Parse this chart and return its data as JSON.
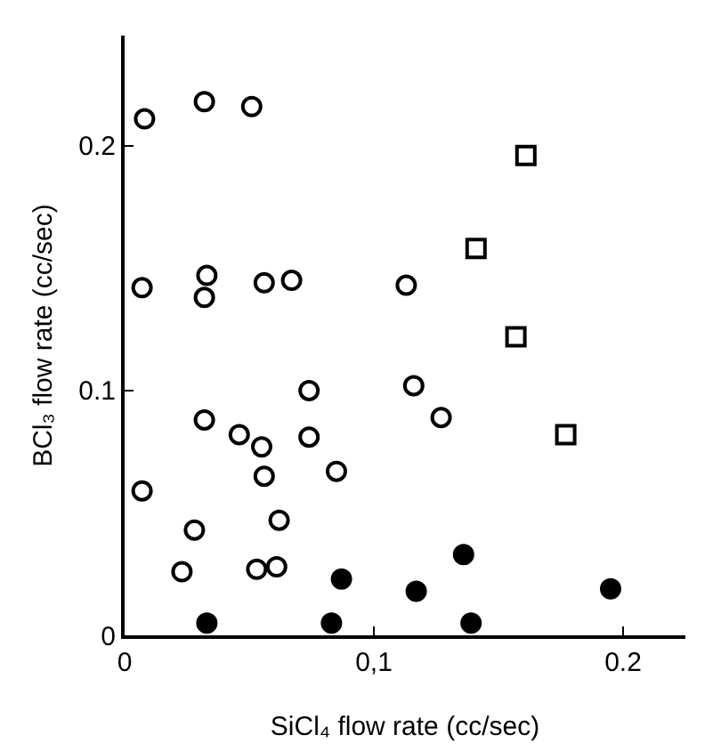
{
  "chart_data": {
    "type": "scatter",
    "xlabel": "SiCl₄ flow rate (cc/sec)",
    "ylabel": "BCl₃ flow rate (cc/sec)",
    "xlim": [
      0,
      0.225
    ],
    "ylim": [
      0,
      0.245
    ],
    "xticks": [
      0,
      {
        "value": 0.1,
        "label": "0,1"
      },
      0.2
    ],
    "yticks": [
      0,
      0.1,
      0.2
    ],
    "grid": false,
    "series": [
      {
        "color": "#ffffff",
        "marker": "circle",
        "x": [
          0.008,
          0.032,
          0.051,
          0.007,
          0.033,
          0.032,
          0.056,
          0.032,
          0.007,
          0.046
        ],
        "values": [
          0.211,
          0.218,
          0.216,
          0.142,
          0.147,
          0.138,
          0.144,
          0.088,
          0.059,
          0.082
        ]
      },
      {
        "color": "#ffffff",
        "marker": "circle",
        "x": [
          0.067,
          0.113,
          0.116,
          0.127,
          0.074,
          0.074,
          0.085,
          0.055,
          0.056,
          0.062,
          0.028,
          0.023,
          0.053,
          0.061
        ],
        "values": [
          0.145,
          0.143,
          0.102,
          0.089,
          0.1,
          0.081,
          0.067,
          0.077,
          0.065,
          0.047,
          0.043,
          0.026,
          0.027,
          0.028
        ]
      },
      {
        "color": "#000000",
        "marker": "circle",
        "x": [
          0.033,
          0.083,
          0.087,
          0.117,
          0.136,
          0.139,
          0.195
        ],
        "values": [
          0.005,
          0.005,
          0.023,
          0.018,
          0.033,
          0.005,
          0.019
        ]
      },
      {
        "color": "#ffffff",
        "marker": "square",
        "x": [
          0.161,
          0.141,
          0.157,
          0.177
        ],
        "values": [
          0.196,
          0.158,
          0.122,
          0.082
        ]
      }
    ]
  }
}
